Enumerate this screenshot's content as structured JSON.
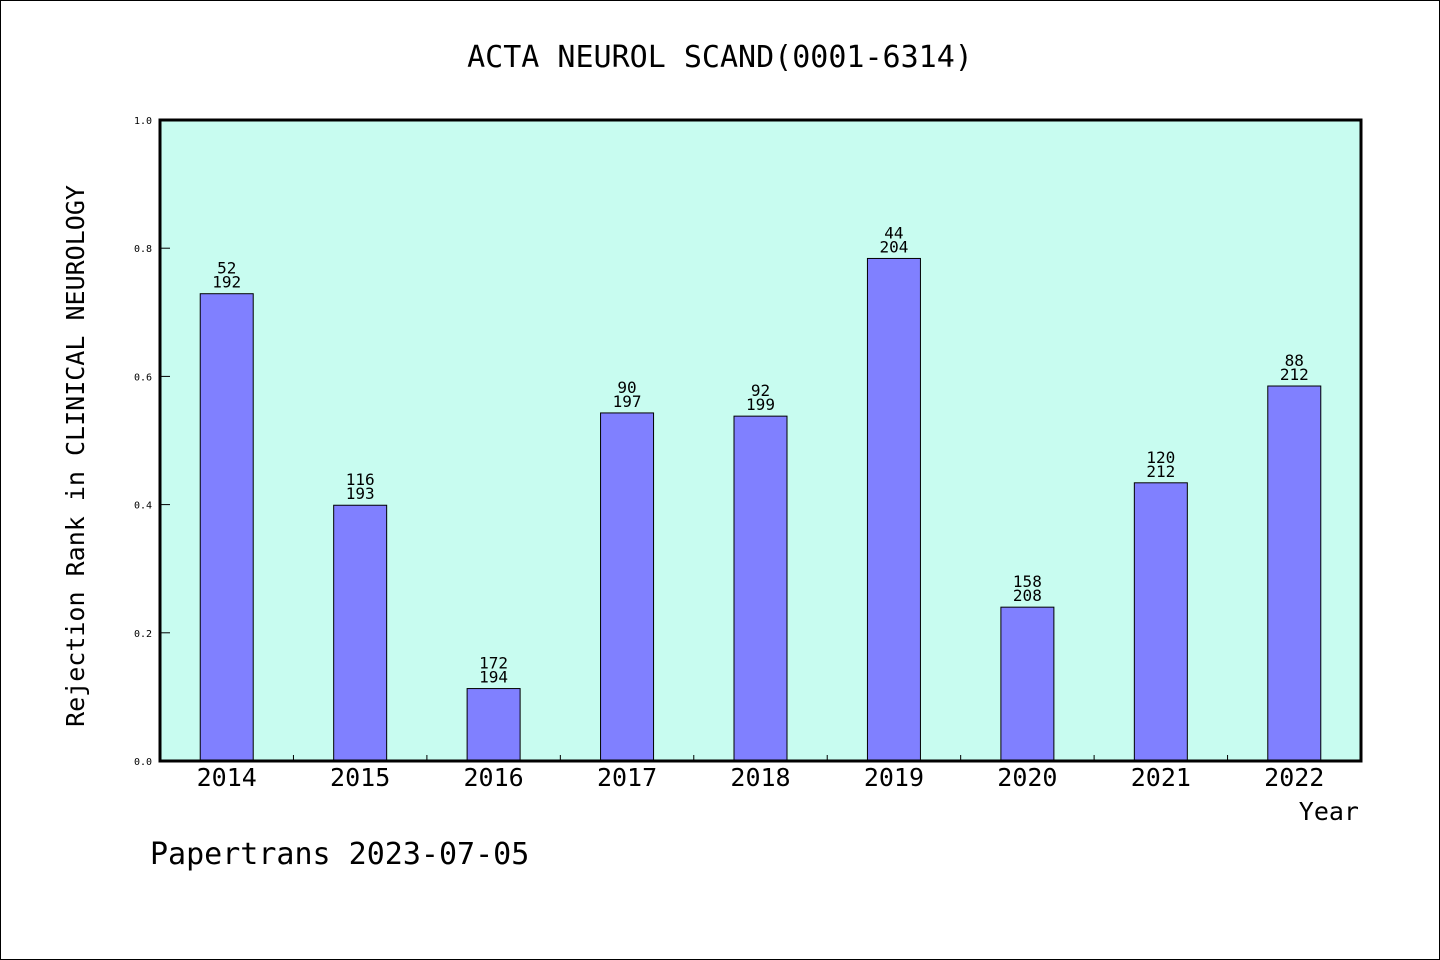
{
  "chart_data": {
    "type": "bar",
    "title": "ACTA NEUROL SCAND(0001-6314)",
    "xlabel": "Year",
    "ylabel": "Rejection Rank in CLINICAL NEUROLOGY",
    "ylim": [
      0,
      1.0
    ],
    "yticks": [
      "0.0",
      "0.2",
      "0.4",
      "0.6",
      "0.8",
      "1.0"
    ],
    "categories": [
      "2014",
      "2015",
      "2016",
      "2017",
      "2018",
      "2019",
      "2020",
      "2021",
      "2022"
    ],
    "values": [
      0.729,
      0.399,
      0.113,
      0.543,
      0.538,
      0.784,
      0.24,
      0.434,
      0.585
    ],
    "rank": [
      "52",
      "116",
      "172",
      "90",
      "92",
      "44",
      "158",
      "120",
      "88"
    ],
    "total": [
      "192",
      "193",
      "194",
      "197",
      "199",
      "204",
      "208",
      "212",
      "212"
    ],
    "grid": false,
    "colors": {
      "plot_background": "#c8fcf0",
      "bar_fill": "#8080ff",
      "bar_stroke": "#000000"
    }
  },
  "footer": {
    "text": "Papertrans 2023-07-05"
  }
}
